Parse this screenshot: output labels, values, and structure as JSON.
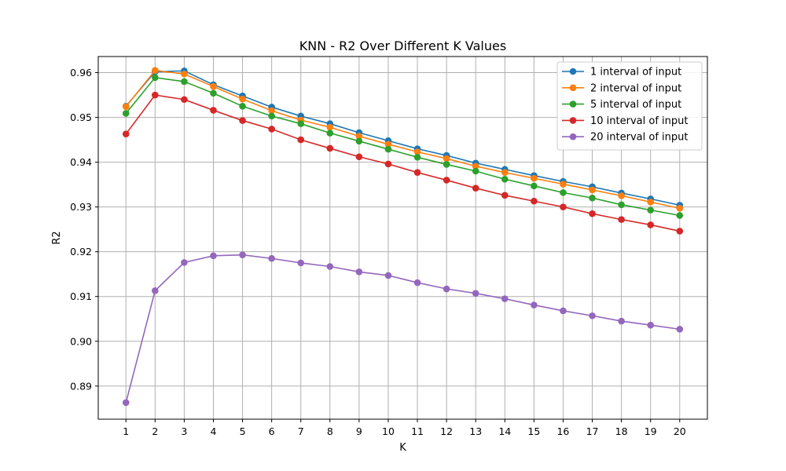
{
  "chart_data": {
    "type": "line",
    "title": "KNN - R2 Over Different K Values",
    "xlabel": "K",
    "ylabel": "R2",
    "x": [
      1,
      2,
      3,
      4,
      5,
      6,
      7,
      8,
      9,
      10,
      11,
      12,
      13,
      14,
      15,
      16,
      17,
      18,
      19,
      20
    ],
    "xlim": [
      0.05,
      20.95
    ],
    "ylim": [
      0.8826,
      0.9636
    ],
    "yticks": [
      0.89,
      0.9,
      0.91,
      0.92,
      0.93,
      0.94,
      0.95,
      0.96
    ],
    "ytick_labels": [
      "0.89",
      "0.90",
      "0.91",
      "0.92",
      "0.93",
      "0.94",
      "0.95",
      "0.96"
    ],
    "grid": true,
    "legend_position": "top-right",
    "series": [
      {
        "name": "1 interval of input",
        "color": "#1f77b4",
        "values": [
          0.9525,
          0.9602,
          0.9604,
          0.9573,
          0.9548,
          0.9523,
          0.9503,
          0.9486,
          0.9466,
          0.9448,
          0.943,
          0.9415,
          0.9398,
          0.9384,
          0.937,
          0.9357,
          0.9345,
          0.9331,
          0.9318,
          0.9304
        ]
      },
      {
        "name": "2 interval of input",
        "color": "#ff7f0e",
        "values": [
          0.9524,
          0.9605,
          0.9597,
          0.9569,
          0.9541,
          0.9515,
          0.9494,
          0.9478,
          0.9458,
          0.944,
          0.9423,
          0.9408,
          0.9391,
          0.9377,
          0.9364,
          0.9351,
          0.9338,
          0.9325,
          0.9311,
          0.9297
        ]
      },
      {
        "name": "5 interval of input",
        "color": "#2ca02c",
        "values": [
          0.9509,
          0.9589,
          0.958,
          0.9554,
          0.9525,
          0.9503,
          0.9486,
          0.9465,
          0.9447,
          0.9429,
          0.9411,
          0.9395,
          0.938,
          0.9362,
          0.9347,
          0.9332,
          0.932,
          0.9305,
          0.9293,
          0.9281
        ]
      },
      {
        "name": "10 interval of input",
        "color": "#d62728",
        "values": [
          0.9463,
          0.955,
          0.954,
          0.9516,
          0.9493,
          0.9474,
          0.945,
          0.9431,
          0.9412,
          0.9396,
          0.9377,
          0.936,
          0.9342,
          0.9326,
          0.9313,
          0.93,
          0.9285,
          0.9272,
          0.926,
          0.9246
        ]
      },
      {
        "name": "20 interval of input",
        "color": "#9467bd",
        "values": [
          0.8863,
          0.9113,
          0.9176,
          0.9191,
          0.9193,
          0.9185,
          0.9175,
          0.9167,
          0.9155,
          0.9147,
          0.9131,
          0.9117,
          0.9107,
          0.9095,
          0.9081,
          0.9068,
          0.9057,
          0.9045,
          0.9036,
          0.9027
        ]
      }
    ]
  }
}
